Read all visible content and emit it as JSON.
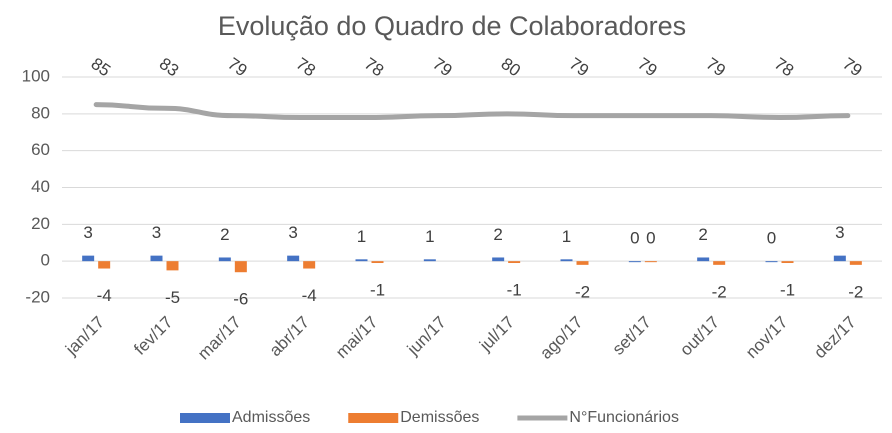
{
  "chart_data": {
    "type": "bar_line",
    "title": "Evolução do Quadro de Colaboradores",
    "categories": [
      "jan/17",
      "fev/17",
      "mar/17",
      "abr/17",
      "mai/17",
      "jun/17",
      "jul/17",
      "ago/17",
      "set/17",
      "out/17",
      "nov/17",
      "dez/17"
    ],
    "series": [
      {
        "name": "Admissões",
        "color": "#4472c4",
        "kind": "bar",
        "values": [
          3,
          3,
          2,
          3,
          1,
          1,
          2,
          1,
          0,
          2,
          0,
          3
        ]
      },
      {
        "name": "Demissões",
        "color": "#ed7d31",
        "kind": "bar",
        "values": [
          -4,
          -5,
          -6,
          -4,
          -1,
          null,
          -1,
          -2,
          0,
          -2,
          -1,
          -2
        ]
      },
      {
        "name": "N°Funcionários",
        "color": "#a5a5a5",
        "kind": "line",
        "values": [
          85,
          83,
          79,
          78,
          78,
          79,
          80,
          79,
          79,
          79,
          78,
          79
        ]
      }
    ],
    "ylim": [
      -20,
      100
    ],
    "yticks": [
      -20,
      0,
      20,
      40,
      60,
      80,
      100
    ],
    "grid": true,
    "legend": "bottom"
  }
}
